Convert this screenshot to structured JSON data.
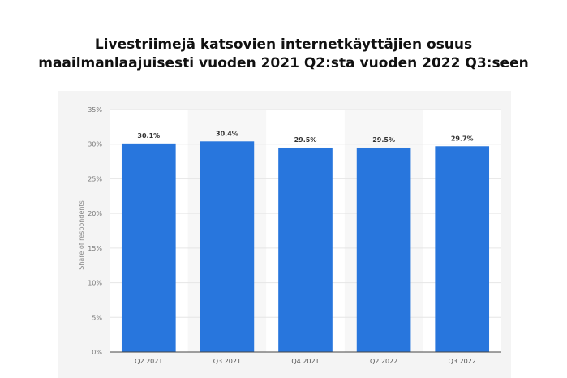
{
  "title_lines": [
    "Livestriimejä katsovien internetkäyttäjien osuus",
    "maailmanlaajuisesti vuoden 2021 Q2:sta vuoden 2022 Q3:seen"
  ],
  "chart_data": {
    "type": "bar",
    "title": "Livestriimejä katsovien internetkäyttäjien osuus maailmanlaajuisesti vuoden 2021 Q2:sta vuoden 2022 Q3:seen",
    "categories": [
      "Q2 2021",
      "Q3 2021",
      "Q4 2021",
      "Q2 2022",
      "Q3 2022"
    ],
    "values": [
      30.1,
      30.4,
      29.5,
      29.5,
      29.7
    ],
    "value_labels": [
      "30.1%",
      "30.4%",
      "29.5%",
      "29.5%",
      "29.7%"
    ],
    "ylabel": "Share of respondents",
    "xlabel": "",
    "ylim": [
      0,
      35
    ],
    "yticks": [
      "0%",
      "5%",
      "10%",
      "15%",
      "20%",
      "25%",
      "30%",
      "35%"
    ],
    "grid": true,
    "bar_color": "#2876dd"
  }
}
